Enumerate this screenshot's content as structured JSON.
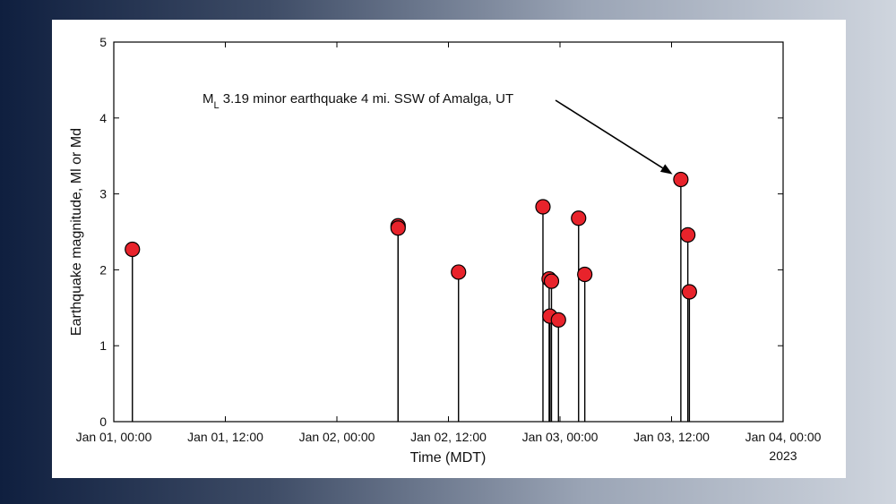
{
  "chart_data": {
    "type": "scatter",
    "title": "",
    "xlabel": "Time (MDT)",
    "ylabel": "Earthquake magnitude, Ml or Md",
    "ylim": [
      0,
      5
    ],
    "xlim": [
      "2023-01-01T00:00",
      "2023-01-04T00:00"
    ],
    "yticks": [
      "0",
      "1",
      "2",
      "3",
      "4",
      "5"
    ],
    "xticks": [
      "Jan 01, 00:00",
      "Jan 01, 12:00",
      "Jan 02, 00:00",
      "Jan 02, 12:00",
      "Jan 03, 00:00",
      "Jan 03, 12:00",
      "Jan 04, 00:00"
    ],
    "year_label": "2023",
    "marker_color": "#e8232b",
    "stem_color": "#000000",
    "series": [
      {
        "points": [
          {
            "x": "2023-01-01T02:00",
            "y": 2.27
          },
          {
            "x": "2023-01-02T06:35",
            "y": 2.58
          },
          {
            "x": "2023-01-02T06:35",
            "y": 2.55
          },
          {
            "x": "2023-01-02T13:05",
            "y": 1.97
          },
          {
            "x": "2023-01-02T22:10",
            "y": 2.83
          },
          {
            "x": "2023-01-02T22:50",
            "y": 1.88
          },
          {
            "x": "2023-01-02T23:05",
            "y": 1.85
          },
          {
            "x": "2023-01-02T22:55",
            "y": 1.39
          },
          {
            "x": "2023-01-02T23:50",
            "y": 1.34
          },
          {
            "x": "2023-01-03T02:00",
            "y": 2.68
          },
          {
            "x": "2023-01-03T02:40",
            "y": 1.94
          },
          {
            "x": "2023-01-03T13:00",
            "y": 3.19
          },
          {
            "x": "2023-01-03T13:45",
            "y": 2.46
          },
          {
            "x": "2023-01-03T13:55",
            "y": 1.71
          }
        ]
      }
    ],
    "annotation": {
      "prefix": "M",
      "subscript": "L",
      "text": " 3.19 minor earthquake 4 mi. SSW of Amalga, UT",
      "target": {
        "x": "2023-01-03T13:00",
        "y": 3.19
      }
    }
  }
}
